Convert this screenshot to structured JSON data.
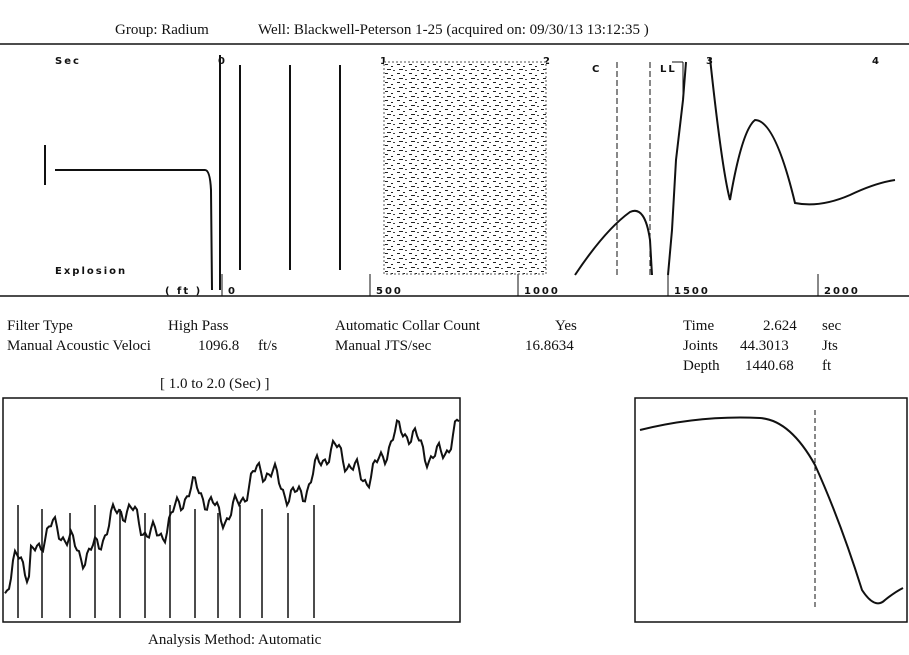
{
  "header": {
    "group": "Group: Radium",
    "well": "Well: Blackwell-Peterson   1-25 (acquired on: 09/30/13 13:12:35 )"
  },
  "top_panel": {
    "time_unit": "Sec",
    "time_ticks": [
      "0",
      "1",
      "2",
      "3",
      "4"
    ],
    "markers": [
      "C",
      "LL"
    ],
    "source_label": "Explosion",
    "depth_unit": "( ft )",
    "depth_ticks": [
      "0",
      "500",
      "1000",
      "1500",
      "2000"
    ]
  },
  "parameters": {
    "filter_type": {
      "label": "Filter Type",
      "value": "High Pass"
    },
    "velocity": {
      "label": "Manual Acoustic Veloci",
      "value": "1096.8",
      "unit": "ft/s"
    },
    "collar_count": {
      "label": "Automatic Collar Count",
      "value": "Yes"
    },
    "jts_sec": {
      "label": "Manual JTS/sec",
      "value": "16.8634"
    },
    "time": {
      "label": "Time",
      "value": "2.624",
      "unit": "sec"
    },
    "joints": {
      "label": "Joints",
      "value": "44.3013",
      "unit": "Jts"
    },
    "depth": {
      "label": "Depth",
      "value": "1440.68",
      "unit": "ft"
    }
  },
  "window_label": "[ 1.0  to  2.0 (Sec) ]",
  "analysis_method": "Analysis Method:   Automatic"
}
